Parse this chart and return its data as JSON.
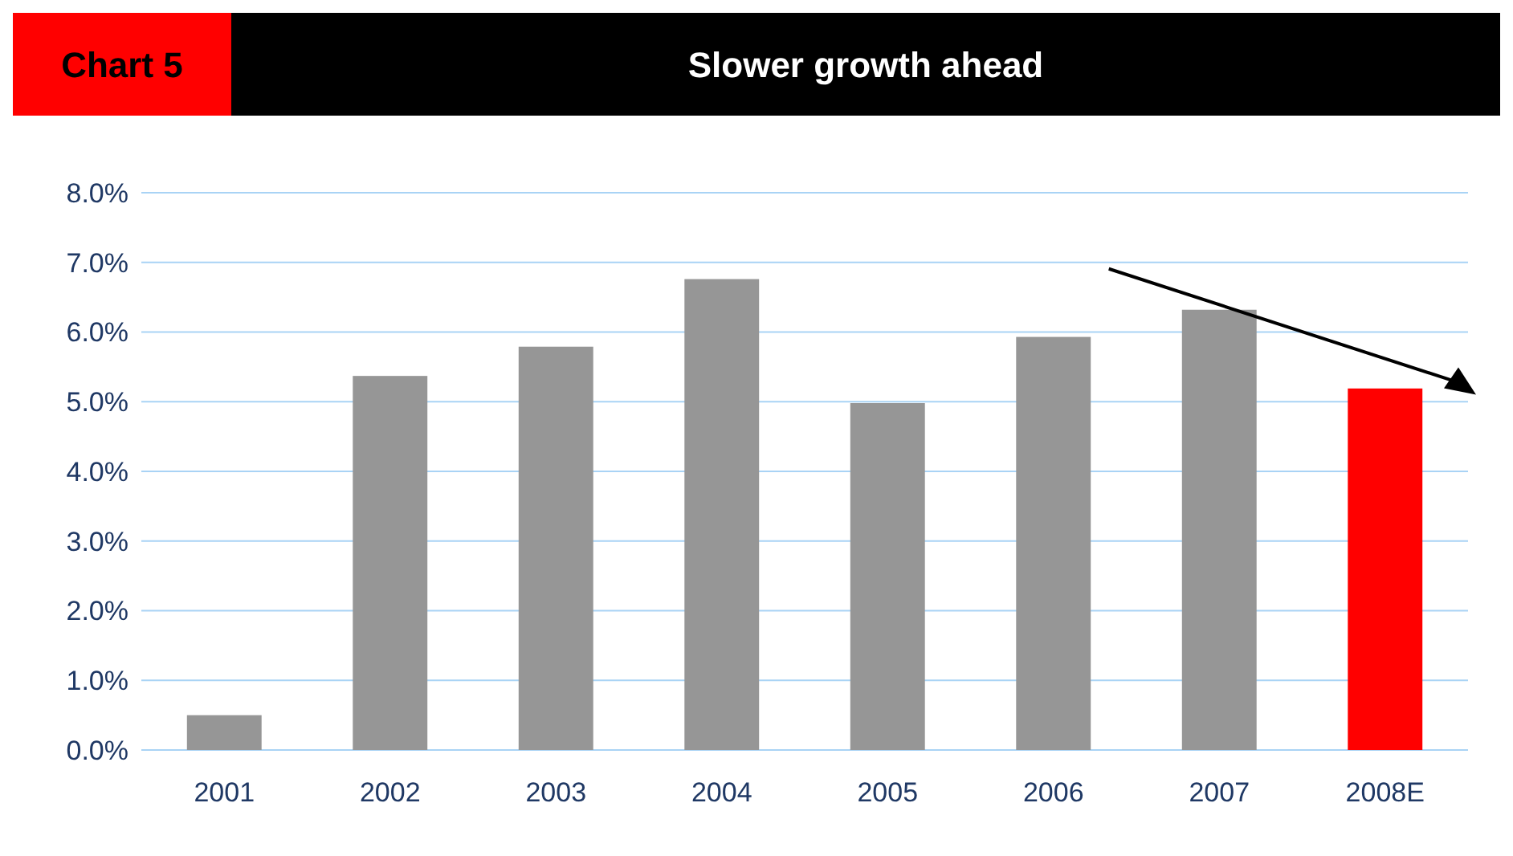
{
  "chart_data": {
    "type": "bar",
    "title": "Slower growth ahead",
    "annotations": [
      "Chart 5"
    ],
    "categories": [
      "2001",
      "2002",
      "2003",
      "2004",
      "2005",
      "2006",
      "2007",
      "2008E"
    ],
    "values": [
      0.5,
      5.37,
      5.79,
      6.76,
      4.98,
      5.93,
      6.32,
      5.19
    ],
    "colors": [
      "#969696",
      "#969696",
      "#969696",
      "#969696",
      "#969696",
      "#969696",
      "#969696",
      "#ff0000"
    ],
    "ylim": [
      0,
      8
    ],
    "yticks": [
      {
        "value": 0,
        "label": "0.0%"
      },
      {
        "value": 1,
        "label": "1.0%"
      },
      {
        "value": 2,
        "label": "2.0%"
      },
      {
        "value": 3,
        "label": "3.0%"
      },
      {
        "value": 4,
        "label": "4.0%"
      },
      {
        "value": 5,
        "label": "5.0%"
      },
      {
        "value": 6,
        "label": "6.0%"
      },
      {
        "value": 7,
        "label": "7.0%"
      },
      {
        "value": 8,
        "label": "8.0%"
      }
    ],
    "grid": "y"
  }
}
